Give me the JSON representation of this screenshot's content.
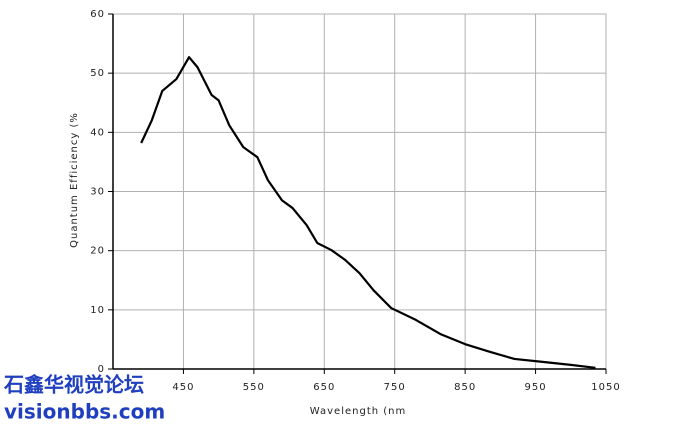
{
  "chart_data": {
    "type": "line",
    "x_label": "Wavelength (nm",
    "y_label": "Quantum Efficiency (%",
    "x": [
      390,
      405,
      420,
      440,
      458,
      470,
      490,
      500,
      515,
      535,
      555,
      570,
      590,
      605,
      625,
      640,
      660,
      680,
      700,
      720,
      745,
      780,
      815,
      850,
      885,
      920,
      960,
      1000,
      1035
    ],
    "series": [
      {
        "name": "Quantum Efficiency",
        "color": "#000000",
        "values": [
          38.2,
          42,
          47,
          49,
          52.7,
          51,
          46.3,
          45.4,
          41.2,
          37.5,
          35.8,
          31.9,
          28.5,
          27.2,
          24.3,
          21.3,
          20.1,
          18.4,
          16.2,
          13.3,
          10.3,
          8.3,
          5.9,
          4.2,
          2.9,
          1.7,
          1.2,
          0.7,
          0.2
        ]
      }
    ],
    "xlim": [
      350,
      1050
    ],
    "xticks": [
      450,
      550,
      650,
      750,
      850,
      950,
      1050
    ],
    "ylim": [
      0,
      60
    ],
    "yticks": [
      0,
      10,
      20,
      30,
      40,
      50,
      60
    ],
    "grid": true,
    "annotations": [
      "石鑫华视觉论坛",
      "visionbbs.com"
    ]
  }
}
